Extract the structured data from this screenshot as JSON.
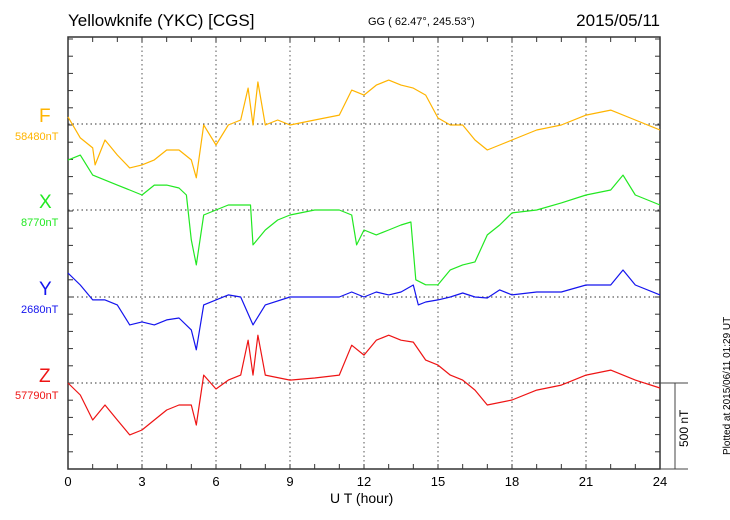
{
  "header": {
    "title": "Yellowknife (YKC)  [CGS]",
    "coords": "GG ( 62.47°, 245.53°)",
    "date": "2015/05/11"
  },
  "footer": {
    "plotted": "Plotted at 2015/06/11 01:29 UT",
    "scale_label": "500 nT"
  },
  "chart_data": {
    "type": "line",
    "title": "Yellowknife (YKC)  [CGS]",
    "xlabel": "U T (hour)",
    "ylabel": "",
    "xlim": [
      0,
      24
    ],
    "xticks": [
      "0",
      "3",
      "6",
      "9",
      "12",
      "15",
      "18",
      "21",
      "24"
    ],
    "scale_bar_nT": 500,
    "grid": true,
    "series": [
      {
        "name": "F",
        "baseline_label": "58480nT",
        "baseline_nT": 58480,
        "color": "#FFB400",
        "x": [
          0,
          0.5,
          1,
          1.1,
          1.5,
          2,
          2.5,
          3,
          3.5,
          4,
          4.5,
          5,
          5.2,
          5.5,
          6,
          6.5,
          7,
          7.3,
          7.5,
          7.7,
          8,
          8.5,
          9,
          10,
          11,
          11.5,
          12,
          12.5,
          13,
          13.5,
          14,
          14.5,
          15,
          15.5,
          16,
          16.5,
          17,
          17.5,
          18,
          19,
          20,
          21,
          22,
          23,
          24
        ],
        "y": [
          41,
          -81,
          -139,
          -238,
          -93,
          -180,
          -255,
          -238,
          -209,
          -151,
          -151,
          -209,
          -313,
          -6,
          -122,
          -6,
          23,
          209,
          -6,
          244,
          -6,
          23,
          -6,
          23,
          52,
          197,
          168,
          226,
          255,
          226,
          209,
          168,
          35,
          -6,
          -6,
          -93,
          -151,
          -122,
          -93,
          -35,
          -6,
          52,
          81,
          23,
          -35
        ]
      },
      {
        "name": "X",
        "baseline_label": "8770nT",
        "baseline_nT": 8770,
        "color": "#22E822",
        "x": [
          0,
          0.5,
          1,
          1.5,
          2,
          2.5,
          3,
          3.5,
          4,
          4.5,
          4.8,
          5,
          5.2,
          5.5,
          6,
          6.5,
          7,
          7.4,
          7.5,
          8,
          8.5,
          9,
          10,
          11,
          11.5,
          11.7,
          12,
          12.5,
          13,
          13.5,
          13.9,
          14.1,
          14.5,
          15,
          15.5,
          16,
          16.5,
          17,
          17.5,
          18,
          19,
          20,
          21,
          22,
          22.5,
          23,
          23.5,
          24
        ],
        "y": [
          290,
          319,
          203,
          174,
          145,
          116,
          87,
          145,
          145,
          128,
          87,
          -174,
          -319,
          -29,
          0,
          29,
          29,
          29,
          -203,
          -116,
          -58,
          -29,
          0,
          0,
          -29,
          -203,
          -116,
          -145,
          -116,
          -87,
          -70,
          -406,
          -435,
          -435,
          -348,
          -319,
          -302,
          -145,
          -87,
          -17,
          0,
          41,
          87,
          116,
          203,
          87,
          58,
          29
        ]
      },
      {
        "name": "Y",
        "baseline_label": "2680nT",
        "baseline_nT": 2680,
        "color": "#1414EE",
        "x": [
          0,
          0.5,
          1,
          1.5,
          2,
          2.5,
          3,
          3.5,
          4,
          4.5,
          5,
          5.2,
          5.5,
          6,
          6.5,
          7,
          7.5,
          8,
          9,
          10,
          11,
          11.5,
          12,
          12.5,
          13,
          13.5,
          14,
          14.2,
          14.5,
          15,
          15.5,
          16,
          16.5,
          17,
          17.5,
          18,
          19,
          20,
          21,
          22,
          22.5,
          23,
          24
        ],
        "y": [
          139,
          70,
          -17,
          -17,
          -46,
          -162,
          -145,
          -162,
          -133,
          -122,
          -191,
          -307,
          -46,
          -17,
          12,
          0,
          -162,
          -46,
          0,
          0,
          0,
          29,
          0,
          29,
          12,
          29,
          70,
          -46,
          -29,
          -17,
          0,
          23,
          0,
          -6,
          41,
          12,
          29,
          29,
          70,
          70,
          157,
          70,
          12
        ]
      },
      {
        "name": "Z",
        "baseline_label": "57790nT",
        "baseline_nT": 57790,
        "color": "#EE1414",
        "x": [
          0,
          0.5,
          1,
          1.5,
          2,
          2.5,
          3,
          3.5,
          4,
          4.5,
          5,
          5.2,
          5.5,
          6,
          6.5,
          7,
          7.3,
          7.5,
          7.7,
          8,
          9,
          10,
          11,
          11.5,
          12,
          12.5,
          13,
          13.5,
          14,
          14.5,
          15,
          15.5,
          16,
          16.5,
          17,
          18,
          19,
          20,
          21,
          22,
          23,
          24
        ],
        "y": [
          0,
          -70,
          -215,
          -128,
          -215,
          -302,
          -273,
          -215,
          -157,
          -128,
          -128,
          -244,
          46,
          -35,
          17,
          46,
          249,
          46,
          278,
          46,
          17,
          29,
          46,
          220,
          162,
          249,
          278,
          249,
          238,
          133,
          104,
          46,
          17,
          -41,
          -128,
          -99,
          -41,
          -12,
          46,
          75,
          17,
          -29
        ]
      }
    ]
  }
}
